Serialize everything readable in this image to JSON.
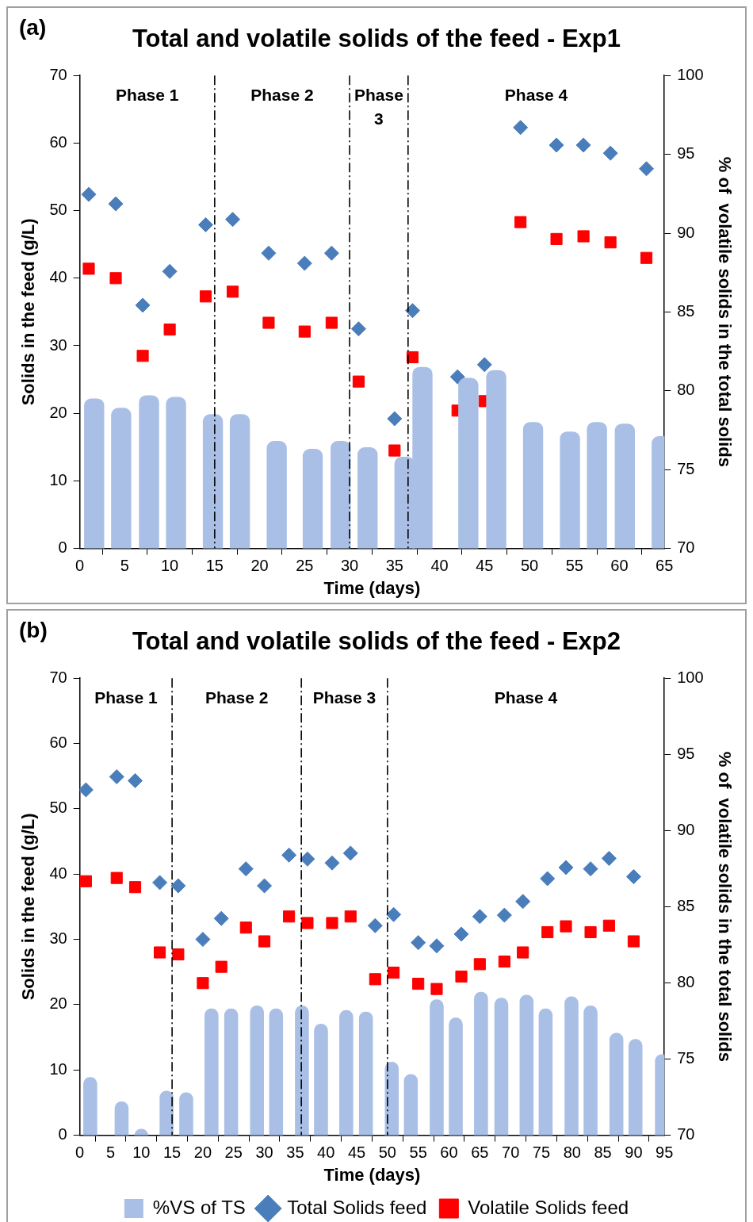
{
  "chart_data": [
    {
      "type": "bar",
      "title": "Total and volatile solids of the feed - Exp1",
      "xlabel": "Time (days)",
      "ylabel": "Solids in the feed (g/L)",
      "y2label": "% of  volatile solids in the total solids",
      "xlim": [
        0,
        65
      ],
      "xticks": [
        0,
        5,
        10,
        15,
        20,
        25,
        30,
        35,
        40,
        45,
        50,
        55,
        60,
        65
      ],
      "ylim": [
        0,
        70
      ],
      "yticks": [
        0,
        10,
        20,
        30,
        40,
        50,
        60,
        70
      ],
      "y2lim": [
        70,
        100
      ],
      "y2ticks": [
        70,
        75,
        80,
        85,
        90,
        95,
        100
      ],
      "legend": false,
      "annotations": [
        "(a)",
        "Phase 1",
        "Phase 2",
        "Phase 3",
        "Phase 4"
      ],
      "ref_lines": [
        {
          "axis": "x",
          "value": 15,
          "color": "#000000",
          "line_style": "dashed"
        },
        {
          "axis": "x",
          "value": 30,
          "color": "#000000",
          "line_style": "dashed"
        },
        {
          "axis": "x",
          "value": 36.5,
          "color": "#000000",
          "line_style": "dashed"
        }
      ],
      "series": [
        {
          "axis": "y2",
          "color": "#a9bfe6",
          "x": [
            1.6,
            4.6,
            7.7,
            10.7,
            14.8,
            17.8,
            21.9,
            25.9,
            29,
            32,
            36.1,
            38.1,
            43.2,
            46.3,
            50.4,
            54.5,
            57.5,
            60.6,
            64.7
          ],
          "values": [
            79.5,
            78.9,
            79.7,
            79.6,
            78.5,
            78.5,
            76.8,
            76.3,
            76.8,
            76.4,
            75.8,
            81.5,
            80.8,
            81.3,
            78.0,
            77.4,
            78.0,
            77.9,
            77.1
          ]
        },
        {
          "type": "scatter",
          "marker": "diamond",
          "color": "#4a7ebb",
          "x": [
            1,
            4,
            7,
            10,
            14,
            17,
            21,
            25,
            28,
            31,
            35,
            37,
            42,
            45,
            49,
            53,
            56,
            59,
            63
          ],
          "values": [
            52.4,
            51.0,
            36.0,
            41.0,
            47.9,
            48.7,
            43.7,
            42.2,
            43.7,
            32.5,
            19.2,
            35.2,
            25.4,
            27.2,
            62.3,
            59.7,
            59.7,
            58.5,
            56.2
          ]
        },
        {
          "type": "scatter",
          "marker": "square",
          "color": "#ff0000",
          "x": [
            1,
            4,
            7,
            10,
            14,
            17,
            21,
            25,
            28,
            31,
            35,
            37,
            42,
            45,
            49,
            53,
            56,
            59,
            63
          ],
          "values": [
            41.4,
            40.0,
            28.5,
            32.4,
            37.3,
            38.0,
            33.4,
            32.1,
            33.4,
            24.7,
            14.5,
            28.3,
            20.4,
            21.8,
            48.3,
            45.8,
            46.2,
            45.3,
            43.0
          ]
        }
      ]
    },
    {
      "type": "bar",
      "title": "Total and volatile solids of the feed - Exp2",
      "xlabel": "Time (days)",
      "ylabel": "Solids in the feed (g/L)",
      "y2label": "% of  volatile solids in the total solids",
      "xlim": [
        0,
        95
      ],
      "xticks": [
        0,
        5,
        10,
        15,
        20,
        25,
        30,
        35,
        40,
        45,
        50,
        55,
        60,
        65,
        70,
        75,
        80,
        85,
        90,
        95
      ],
      "ylim": [
        0,
        70
      ],
      "yticks": [
        0,
        10,
        20,
        30,
        40,
        50,
        60,
        70
      ],
      "y2lim": [
        70,
        100
      ],
      "y2ticks": [
        70,
        75,
        80,
        85,
        90,
        95,
        100
      ],
      "legend": "bottom",
      "annotations": [
        "(b)",
        "Phase 1",
        "Phase 2",
        "Phase 3",
        "Phase 4"
      ],
      "ref_lines": [
        {
          "axis": "x",
          "value": 15,
          "color": "#000000",
          "line_style": "dashed"
        },
        {
          "axis": "x",
          "value": 36,
          "color": "#000000",
          "line_style": "dashed"
        },
        {
          "axis": "x",
          "value": 50,
          "color": "#000000",
          "line_style": "dashed"
        }
      ],
      "series": [
        {
          "axis": "y2",
          "name": "%VS of TS",
          "color": "#a9bfe6",
          "x": [
            1.7,
            6.8,
            10,
            14.1,
            17.3,
            21.4,
            24.6,
            28.8,
            31.9,
            36.1,
            39.2,
            43.3,
            46.5,
            50.7,
            53.8,
            58,
            61.1,
            65.2,
            68.5,
            72.6,
            75.7,
            79.9,
            83,
            87.2,
            90.3,
            94.6
          ],
          "values": [
            73.8,
            72.2,
            70.4,
            72.9,
            72.8,
            78.3,
            78.3,
            78.5,
            78.3,
            78.5,
            77.3,
            78.2,
            78.1,
            74.8,
            74.0,
            78.9,
            77.7,
            79.4,
            79.0,
            79.2,
            78.3,
            79.1,
            78.5,
            76.7,
            76.3,
            75.3
          ]
        },
        {
          "type": "scatter",
          "marker": "diamond",
          "name": "Total Solids feed",
          "color": "#4a7ebb",
          "x": [
            1,
            6,
            9,
            13,
            16,
            20,
            23,
            27,
            30,
            34,
            37,
            41,
            44,
            48,
            51,
            55,
            58,
            62,
            65,
            69,
            72,
            76,
            79,
            83,
            86,
            90
          ],
          "values": [
            52.9,
            54.9,
            54.3,
            38.7,
            38.2,
            30.0,
            33.2,
            40.8,
            38.2,
            42.9,
            42.3,
            41.7,
            43.2,
            32.1,
            33.8,
            29.5,
            29.0,
            30.8,
            33.5,
            33.7,
            35.8,
            39.3,
            41.0,
            40.8,
            42.4,
            39.6
          ]
        },
        {
          "type": "scatter",
          "marker": "square",
          "name": "Volatile Solids feed",
          "color": "#ff0000",
          "x": [
            1,
            6,
            9,
            13,
            16,
            20,
            23,
            27,
            30,
            34,
            37,
            41,
            44,
            48,
            51,
            55,
            58,
            62,
            65,
            69,
            72,
            76,
            79,
            83,
            86,
            90
          ],
          "values": [
            38.9,
            39.4,
            38.0,
            28.0,
            27.7,
            23.3,
            25.8,
            31.8,
            29.7,
            33.5,
            32.5,
            32.5,
            33.5,
            23.9,
            24.9,
            23.2,
            22.4,
            24.3,
            26.2,
            26.6,
            28.0,
            31.1,
            32.0,
            31.1,
            32.1,
            29.7
          ]
        }
      ]
    }
  ]
}
